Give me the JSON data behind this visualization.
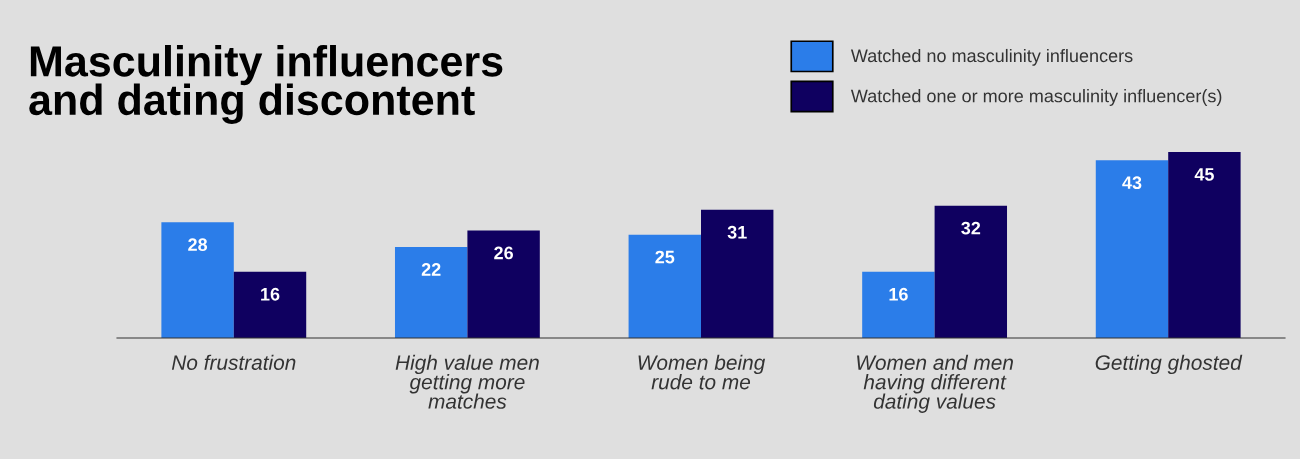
{
  "chart_data": {
    "type": "bar",
    "title": "Masculinity influencers\nand dating discontent",
    "categories": [
      "No frustration",
      "High value men\ngetting more\nmatches",
      "Women being\nrude to me",
      "Women and men\nhaving different\ndating values",
      "Getting ghosted"
    ],
    "series": [
      {
        "name": "Watched no masculinity influencers",
        "color": "#2b7de9",
        "values": [
          28,
          22,
          25,
          16,
          43
        ]
      },
      {
        "name": "Watched one or more masculinity influencer(s)",
        "color": "#0f0060",
        "values": [
          16,
          26,
          31,
          32,
          45
        ]
      }
    ],
    "data_labels": true,
    "legend": "top right",
    "grid": false
  }
}
